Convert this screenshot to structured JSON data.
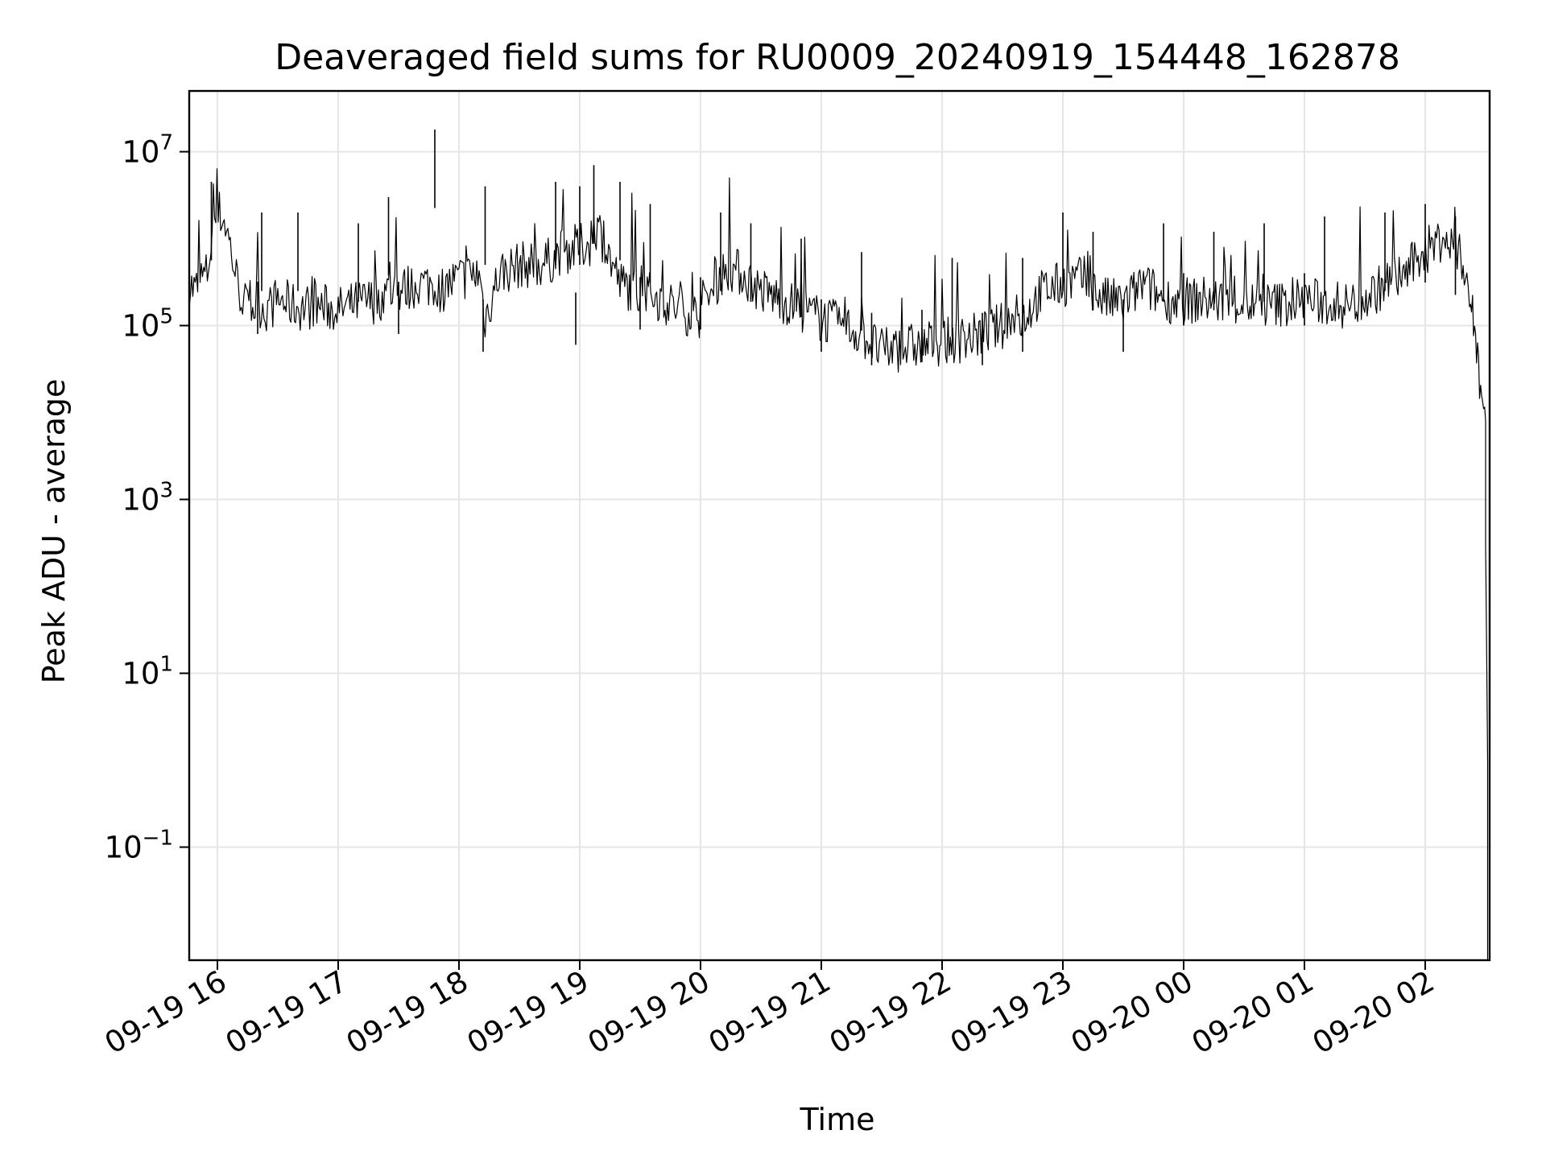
{
  "chart_data": {
    "type": "line",
    "title": "Deaveraged field sums for RU0009_20240919_154448_162878",
    "xlabel": "Time",
    "ylabel": "Peak ADU - average",
    "yscale": "log",
    "grid": true,
    "line_color": "#000000",
    "grid_color": "#e5e5e5",
    "xlim": [
      "2024-09-19 15:46",
      "2024-09-20 02:32"
    ],
    "ylim": [
      0.005,
      50000000
    ],
    "x_ticks": [
      {
        "value": "2024-09-19 16:00",
        "label": "09-19 16"
      },
      {
        "value": "2024-09-19 17:00",
        "label": "09-19 17"
      },
      {
        "value": "2024-09-19 18:00",
        "label": "09-19 18"
      },
      {
        "value": "2024-09-19 19:00",
        "label": "09-19 19"
      },
      {
        "value": "2024-09-19 20:00",
        "label": "09-19 20"
      },
      {
        "value": "2024-09-19 21:00",
        "label": "09-19 21"
      },
      {
        "value": "2024-09-19 22:00",
        "label": "09-19 22"
      },
      {
        "value": "2024-09-19 23:00",
        "label": "09-19 23"
      },
      {
        "value": "2024-09-20 00:00",
        "label": "09-20 00"
      },
      {
        "value": "2024-09-20 01:00",
        "label": "09-20 01"
      },
      {
        "value": "2024-09-20 02:00",
        "label": "09-20 02"
      }
    ],
    "y_ticks": [
      {
        "value": 10000000,
        "base": "10",
        "exp": "7"
      },
      {
        "value": 100000,
        "base": "10",
        "exp": "5"
      },
      {
        "value": 1000,
        "base": "10",
        "exp": "3"
      },
      {
        "value": 10,
        "base": "10",
        "exp": "1"
      },
      {
        "value": 0.1,
        "base": "10",
        "exp": "−1"
      }
    ],
    "series": [
      {
        "x": [
          "2024-09-19 15:46",
          "2024-09-19 15:49",
          "2024-09-19 15:52",
          "2024-09-19 15:55",
          "2024-09-19 15:58",
          "2024-09-19 16:01",
          "2024-09-19 16:04",
          "2024-09-19 16:07",
          "2024-09-19 16:10",
          "2024-09-19 16:15",
          "2024-09-19 16:20",
          "2024-09-19 16:25",
          "2024-09-19 16:30",
          "2024-09-19 16:40",
          "2024-09-19 16:50",
          "2024-09-19 17:00",
          "2024-09-19 17:10",
          "2024-09-19 17:20",
          "2024-09-19 17:25",
          "2024-09-19 17:30",
          "2024-09-19 17:40",
          "2024-09-19 17:48",
          "2024-09-19 17:50",
          "2024-09-19 18:00",
          "2024-09-19 18:10",
          "2024-09-19 18:13",
          "2024-09-19 18:20",
          "2024-09-19 18:30",
          "2024-09-19 18:40",
          "2024-09-19 18:48",
          "2024-09-19 18:50",
          "2024-09-19 19:00",
          "2024-09-19 19:05",
          "2024-09-19 19:07",
          "2024-09-19 19:10",
          "2024-09-19 19:15",
          "2024-09-19 19:20",
          "2024-09-19 19:30",
          "2024-09-19 19:40",
          "2024-09-19 19:50",
          "2024-09-19 20:00",
          "2024-09-19 20:10",
          "2024-09-19 20:15",
          "2024-09-19 20:20",
          "2024-09-19 20:30",
          "2024-09-19 20:40",
          "2024-09-19 20:50",
          "2024-09-19 21:00",
          "2024-09-19 21:10",
          "2024-09-19 21:20",
          "2024-09-19 21:30",
          "2024-09-19 21:40",
          "2024-09-19 21:50",
          "2024-09-19 22:00",
          "2024-09-19 22:10",
          "2024-09-19 22:20",
          "2024-09-19 22:30",
          "2024-09-19 22:40",
          "2024-09-19 22:50",
          "2024-09-19 23:00",
          "2024-09-19 23:10",
          "2024-09-19 23:20",
          "2024-09-19 23:30",
          "2024-09-19 23:40",
          "2024-09-19 23:50",
          "2024-09-20 00:00",
          "2024-09-20 00:10",
          "2024-09-20 00:20",
          "2024-09-20 00:30",
          "2024-09-20 00:40",
          "2024-09-20 00:50",
          "2024-09-20 01:00",
          "2024-09-20 01:10",
          "2024-09-20 01:20",
          "2024-09-20 01:30",
          "2024-09-20 01:40",
          "2024-09-20 01:50",
          "2024-09-20 02:00",
          "2024-09-20 02:05",
          "2024-09-20 02:10",
          "2024-09-20 02:20",
          "2024-09-20 02:22",
          "2024-09-20 02:23",
          "2024-09-20 02:24",
          "2024-09-20 02:25",
          "2024-09-20 02:26",
          "2024-09-20 02:27",
          "2024-09-20 02:28",
          "2024-09-20 02:29",
          "2024-09-20 02:30",
          "2024-09-20 02:30",
          "2024-09-20 02:31",
          "2024-09-20 02:31",
          "2024-09-20 02:31"
        ],
        "y": [
          300000,
          250000,
          350000,
          400000,
          1500000,
          2000000,
          1500000,
          700000,
          300000,
          150000,
          180000,
          150000,
          200000,
          160000,
          170000,
          150000,
          180000,
          200000,
          250000,
          250000,
          300000,
          300000,
          250000,
          350000,
          400000,
          120000,
          400000,
          500000,
          500000,
          600000,
          700000,
          800000,
          900000,
          1500000,
          1200000,
          600000,
          300000,
          250000,
          200000,
          150000,
          130000,
          400000,
          450000,
          400000,
          250000,
          200000,
          150000,
          120000,
          100000,
          80000,
          50000,
          55000,
          60000,
          65000,
          70000,
          80000,
          100000,
          120000,
          250000,
          300000,
          350000,
          200000,
          180000,
          300000,
          200000,
          190000,
          200000,
          190000,
          180000,
          170000,
          180000,
          200000,
          180000,
          170000,
          200000,
          300000,
          400000,
          700000,
          900000,
          1000000,
          500000,
          200000,
          150000,
          100000,
          80000,
          50000,
          20000,
          15000,
          10000,
          8000,
          300,
          1,
          0.01,
          0.005
        ],
        "spikes": [
          [
            "2024-09-19 15:57",
            4500000
          ],
          [
            "2024-09-19 16:22",
            2000000
          ],
          [
            "2024-09-19 16:40",
            2000000
          ],
          [
            "2024-09-19 17:10",
            1500000
          ],
          [
            "2024-09-19 17:25",
            3000000
          ],
          [
            "2024-09-19 17:48",
            18000000
          ],
          [
            "2024-09-19 18:13",
            4000000
          ],
          [
            "2024-09-19 18:48",
            4500000
          ],
          [
            "2024-09-19 19:00",
            4000000
          ],
          [
            "2024-09-19 19:07",
            7000000
          ],
          [
            "2024-09-19 19:20",
            4500000
          ],
          [
            "2024-09-19 19:35",
            2500000
          ],
          [
            "2024-09-19 20:10",
            2000000
          ],
          [
            "2024-09-19 20:25",
            1500000
          ],
          [
            "2024-09-19 20:50",
            1000000
          ],
          [
            "2024-09-19 21:20",
            700000
          ],
          [
            "2024-09-19 22:05",
            600000
          ],
          [
            "2024-09-19 22:40",
            600000
          ],
          [
            "2024-09-19 23:00",
            2000000
          ],
          [
            "2024-09-19 23:15",
            1200000
          ],
          [
            "2024-09-19 23:50",
            1500000
          ],
          [
            "2024-09-20 00:15",
            1200000
          ],
          [
            "2024-09-20 00:40",
            1500000
          ],
          [
            "2024-09-20 01:10",
            1800000
          ],
          [
            "2024-09-20 01:40",
            2000000
          ],
          [
            "2024-09-20 02:00",
            2500000
          ],
          [
            "2024-09-20 02:15",
            1800000
          ]
        ],
        "dips": [
          [
            "2024-09-19 16:20",
            80000
          ],
          [
            "2024-09-19 17:30",
            80000
          ],
          [
            "2024-09-19 18:12",
            50000
          ],
          [
            "2024-09-19 18:58",
            60000
          ],
          [
            "2024-09-19 19:30",
            90000
          ],
          [
            "2024-09-19 20:00",
            90000
          ],
          [
            "2024-09-19 21:00",
            50000
          ],
          [
            "2024-09-19 21:25",
            35000
          ],
          [
            "2024-09-19 21:50",
            38000
          ],
          [
            "2024-09-19 22:20",
            35000
          ],
          [
            "2024-09-19 22:40",
            50000
          ],
          [
            "2024-09-19 23:30",
            50000
          ],
          [
            "2024-09-20 00:00",
            100000
          ],
          [
            "2024-09-20 01:00",
            100000
          ]
        ]
      }
    ]
  }
}
